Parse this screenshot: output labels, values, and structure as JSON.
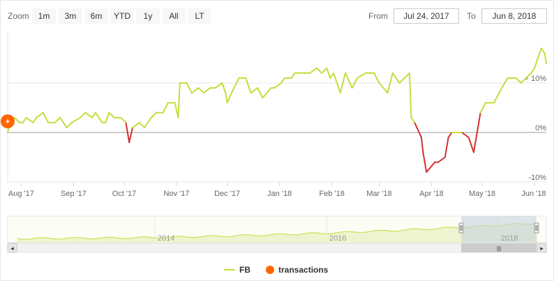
{
  "toolbar": {
    "zoom_label": "Zoom",
    "zoom_buttons": [
      "1m",
      "3m",
      "6m",
      "YTD",
      "1y",
      "All",
      "LT"
    ],
    "from_label": "From",
    "from_value": "Jul 24, 2017",
    "to_label": "To",
    "to_value": "Jun 8, 2018"
  },
  "colors": {
    "line_positive": "#c5dc3c",
    "line_negative": "#d23030",
    "transaction_marker": "#ff6600",
    "navigator_mask": "#c8d2de",
    "axis_zero": "#999999",
    "grid": "#e6e6e6"
  },
  "chart_data": {
    "type": "line",
    "title": "",
    "xlabel": "",
    "ylabel": "",
    "ylim": [
      -10,
      16
    ],
    "x_range": [
      "2017-07-24",
      "2018-06-08"
    ],
    "x_tick_labels": [
      "Aug '17",
      "Sep '17",
      "Oct '17",
      "Nov '17",
      "Dec '17",
      "Jan '18",
      "Feb '18",
      "Mar '18",
      "Apr '18",
      "May '18",
      "Jun '18"
    ],
    "y_tick_labels": [
      "+ 10%",
      "0%",
      "-10%"
    ],
    "grid": true,
    "series": [
      {
        "name": "FB",
        "x": [
          "2017-07-24",
          "2017-07-26",
          "2017-07-27",
          "2017-07-28",
          "2017-07-31",
          "2017-08-02",
          "2017-08-04",
          "2017-08-08",
          "2017-08-10",
          "2017-08-14",
          "2017-08-17",
          "2017-08-21",
          "2017-08-24",
          "2017-08-28",
          "2017-08-31",
          "2017-09-05",
          "2017-09-08",
          "2017-09-12",
          "2017-09-14",
          "2017-09-18",
          "2017-09-20",
          "2017-09-22",
          "2017-09-25",
          "2017-09-27",
          "2017-09-29",
          "2017-10-02",
          "2017-10-04",
          "2017-10-06",
          "2017-10-10",
          "2017-10-13",
          "2017-10-17",
          "2017-10-20",
          "2017-10-24",
          "2017-10-27",
          "2017-10-31",
          "2017-11-02",
          "2017-11-03",
          "2017-11-07",
          "2017-11-10",
          "2017-11-14",
          "2017-11-17",
          "2017-11-21",
          "2017-11-24",
          "2017-11-28",
          "2017-11-30",
          "2017-12-01",
          "2017-12-05",
          "2017-12-08",
          "2017-12-12",
          "2017-12-15",
          "2017-12-19",
          "2017-12-22",
          "2017-12-27",
          "2017-12-29",
          "2018-01-02",
          "2018-01-04",
          "2018-01-08",
          "2018-01-10",
          "2018-01-12",
          "2018-01-16",
          "2018-01-19",
          "2018-01-23",
          "2018-01-26",
          "2018-01-29",
          "2018-01-31",
          "2018-02-02",
          "2018-02-06",
          "2018-02-09",
          "2018-02-13",
          "2018-02-16",
          "2018-02-21",
          "2018-02-26",
          "2018-03-01",
          "2018-03-06",
          "2018-03-09",
          "2018-03-13",
          "2018-03-16",
          "2018-03-19",
          "2018-03-20",
          "2018-03-22",
          "2018-03-26",
          "2018-03-27",
          "2018-03-29",
          "2018-04-03",
          "2018-04-05",
          "2018-04-09",
          "2018-04-11",
          "2018-04-13",
          "2018-04-17",
          "2018-04-19",
          "2018-04-23",
          "2018-04-25",
          "2018-04-26",
          "2018-04-30",
          "2018-05-03",
          "2018-05-08",
          "2018-05-11",
          "2018-05-16",
          "2018-05-21",
          "2018-05-24",
          "2018-05-30",
          "2018-06-01",
          "2018-06-05",
          "2018-06-07",
          "2018-06-08"
        ],
        "y": [
          0,
          3,
          2,
          3,
          2,
          2,
          3,
          2,
          3,
          4,
          2,
          2,
          3,
          1,
          2,
          3,
          4,
          3,
          4,
          2,
          2,
          4,
          3,
          3,
          3,
          2,
          -2,
          1,
          2,
          1,
          3,
          4,
          4,
          6,
          6,
          3,
          10,
          10,
          8,
          9,
          8,
          9,
          9,
          10,
          8,
          6,
          9,
          11,
          11,
          8,
          9,
          7,
          9,
          9,
          10,
          11,
          11,
          12,
          12,
          12,
          12,
          13,
          12,
          13,
          11,
          12,
          8,
          12,
          9,
          11,
          12,
          12,
          10,
          8,
          12,
          10,
          11,
          12,
          3,
          2,
          -1,
          -4,
          -8,
          -6,
          -6,
          -5,
          -1,
          0,
          0,
          0,
          -1,
          -3,
          -4,
          4,
          6,
          6,
          8,
          11,
          11,
          10,
          12,
          13,
          17,
          16,
          14
        ]
      }
    ],
    "transactions": [
      {
        "x": "2017-07-24",
        "y": 0,
        "label": "+"
      }
    ],
    "navigator": {
      "x_tick_labels": [
        "2014",
        "2016",
        "2018"
      ]
    }
  },
  "legend": {
    "fb_label": "FB",
    "transactions_label": "transactions"
  }
}
